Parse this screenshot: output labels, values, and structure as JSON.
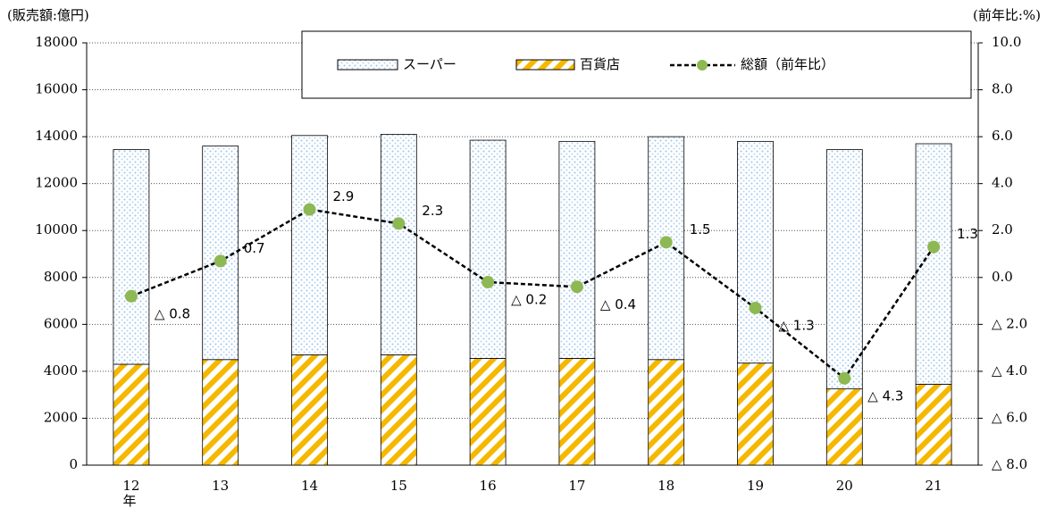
{
  "chart_data": {
    "type": "bar",
    "y_label": "(販売額:億円)",
    "y2_label": "(前年比:%)",
    "x_label": "年",
    "categories": [
      "12",
      "13",
      "14",
      "15",
      "16",
      "17",
      "18",
      "19",
      "20",
      "21"
    ],
    "series": [
      {
        "name": "百貨店",
        "type": "bar",
        "color": "#f5b800",
        "values": [
          4300,
          4500,
          4700,
          4700,
          4550,
          4550,
          4500,
          4350,
          3250,
          3450
        ]
      },
      {
        "name": "スーパー",
        "type": "bar",
        "color": "#9cc3e8",
        "values": [
          9150,
          9100,
          9350,
          9400,
          9300,
          9250,
          9500,
          9450,
          10200,
          10250
        ]
      },
      {
        "name": "総額（前年比）",
        "type": "line",
        "axis": "y2",
        "color": "#8db853",
        "values": [
          -0.8,
          0.7,
          2.9,
          2.3,
          -0.2,
          -0.4,
          1.5,
          -1.3,
          -4.3,
          1.3
        ],
        "value_labels": [
          "△ 0.8",
          "0.7",
          "2.9",
          "2.3",
          "△ 0.2",
          "△ 0.4",
          "1.5",
          "△ 1.3",
          "△ 4.3",
          "1.3"
        ]
      }
    ],
    "ylim": [
      0,
      18000
    ],
    "yticks": [
      0,
      2000,
      4000,
      6000,
      8000,
      10000,
      12000,
      14000,
      16000,
      18000
    ],
    "y2lim": [
      -8,
      10
    ],
    "y2ticks": [
      {
        "value": -8,
        "label": "△ 8.0"
      },
      {
        "value": -6,
        "label": "△ 6.0"
      },
      {
        "value": -4,
        "label": "△ 4.0"
      },
      {
        "value": -2,
        "label": "△ 2.0"
      },
      {
        "value": 0,
        "label": "0.0"
      },
      {
        "value": 2,
        "label": "2.0"
      },
      {
        "value": 4,
        "label": "4.0"
      },
      {
        "value": 6,
        "label": "6.0"
      },
      {
        "value": 8,
        "label": "8.0"
      },
      {
        "value": 10,
        "label": "10.0"
      }
    ],
    "grid": true,
    "legend": "top"
  }
}
